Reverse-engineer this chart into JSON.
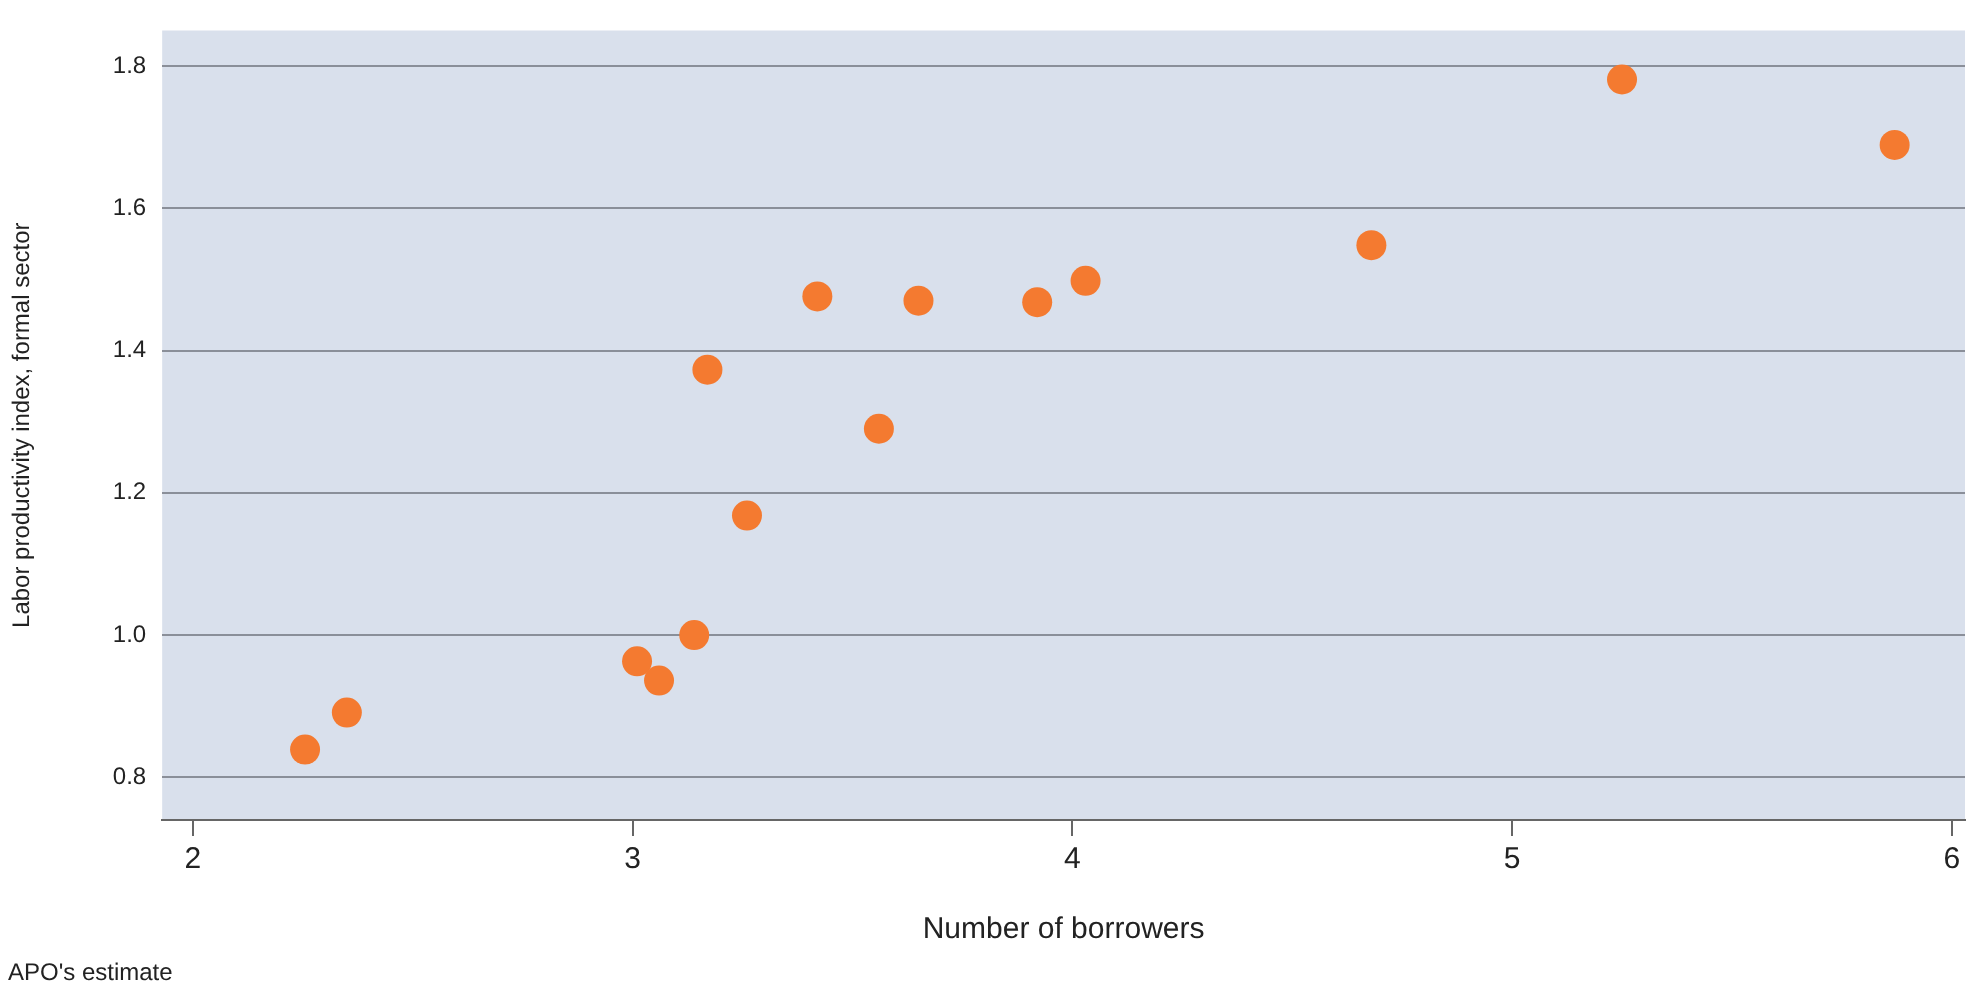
{
  "chart_data": {
    "type": "scatter",
    "xlabel": "Number of borrowers",
    "ylabel": "Labor productivity index, formal sector",
    "annotations": [
      "APO's estimate"
    ],
    "series": [
      {
        "color": "#f47a30",
        "x": [
          2.255,
          2.35,
          3.01,
          3.06,
          3.14,
          3.17,
          3.26,
          3.42,
          3.56,
          3.65,
          3.92,
          4.03,
          4.68,
          5.25,
          5.87
        ],
        "values": [
          0.839,
          0.891,
          0.963,
          0.936,
          1.0,
          1.373,
          1.168,
          1.476,
          1.29,
          1.47,
          1.468,
          1.498,
          1.548,
          1.781,
          1.689
        ]
      }
    ],
    "xlim": [
      1.93,
      6.03
    ],
    "xticks": [
      2,
      3,
      4,
      5,
      6
    ],
    "ylim": [
      0.74,
      1.85
    ],
    "yticks": [
      0.8,
      {
        "value": 1,
        "label": "1.0"
      },
      1.2,
      1.4,
      1.6,
      1.8
    ],
    "grid": "y",
    "legend": false,
    "marker": "circle"
  }
}
